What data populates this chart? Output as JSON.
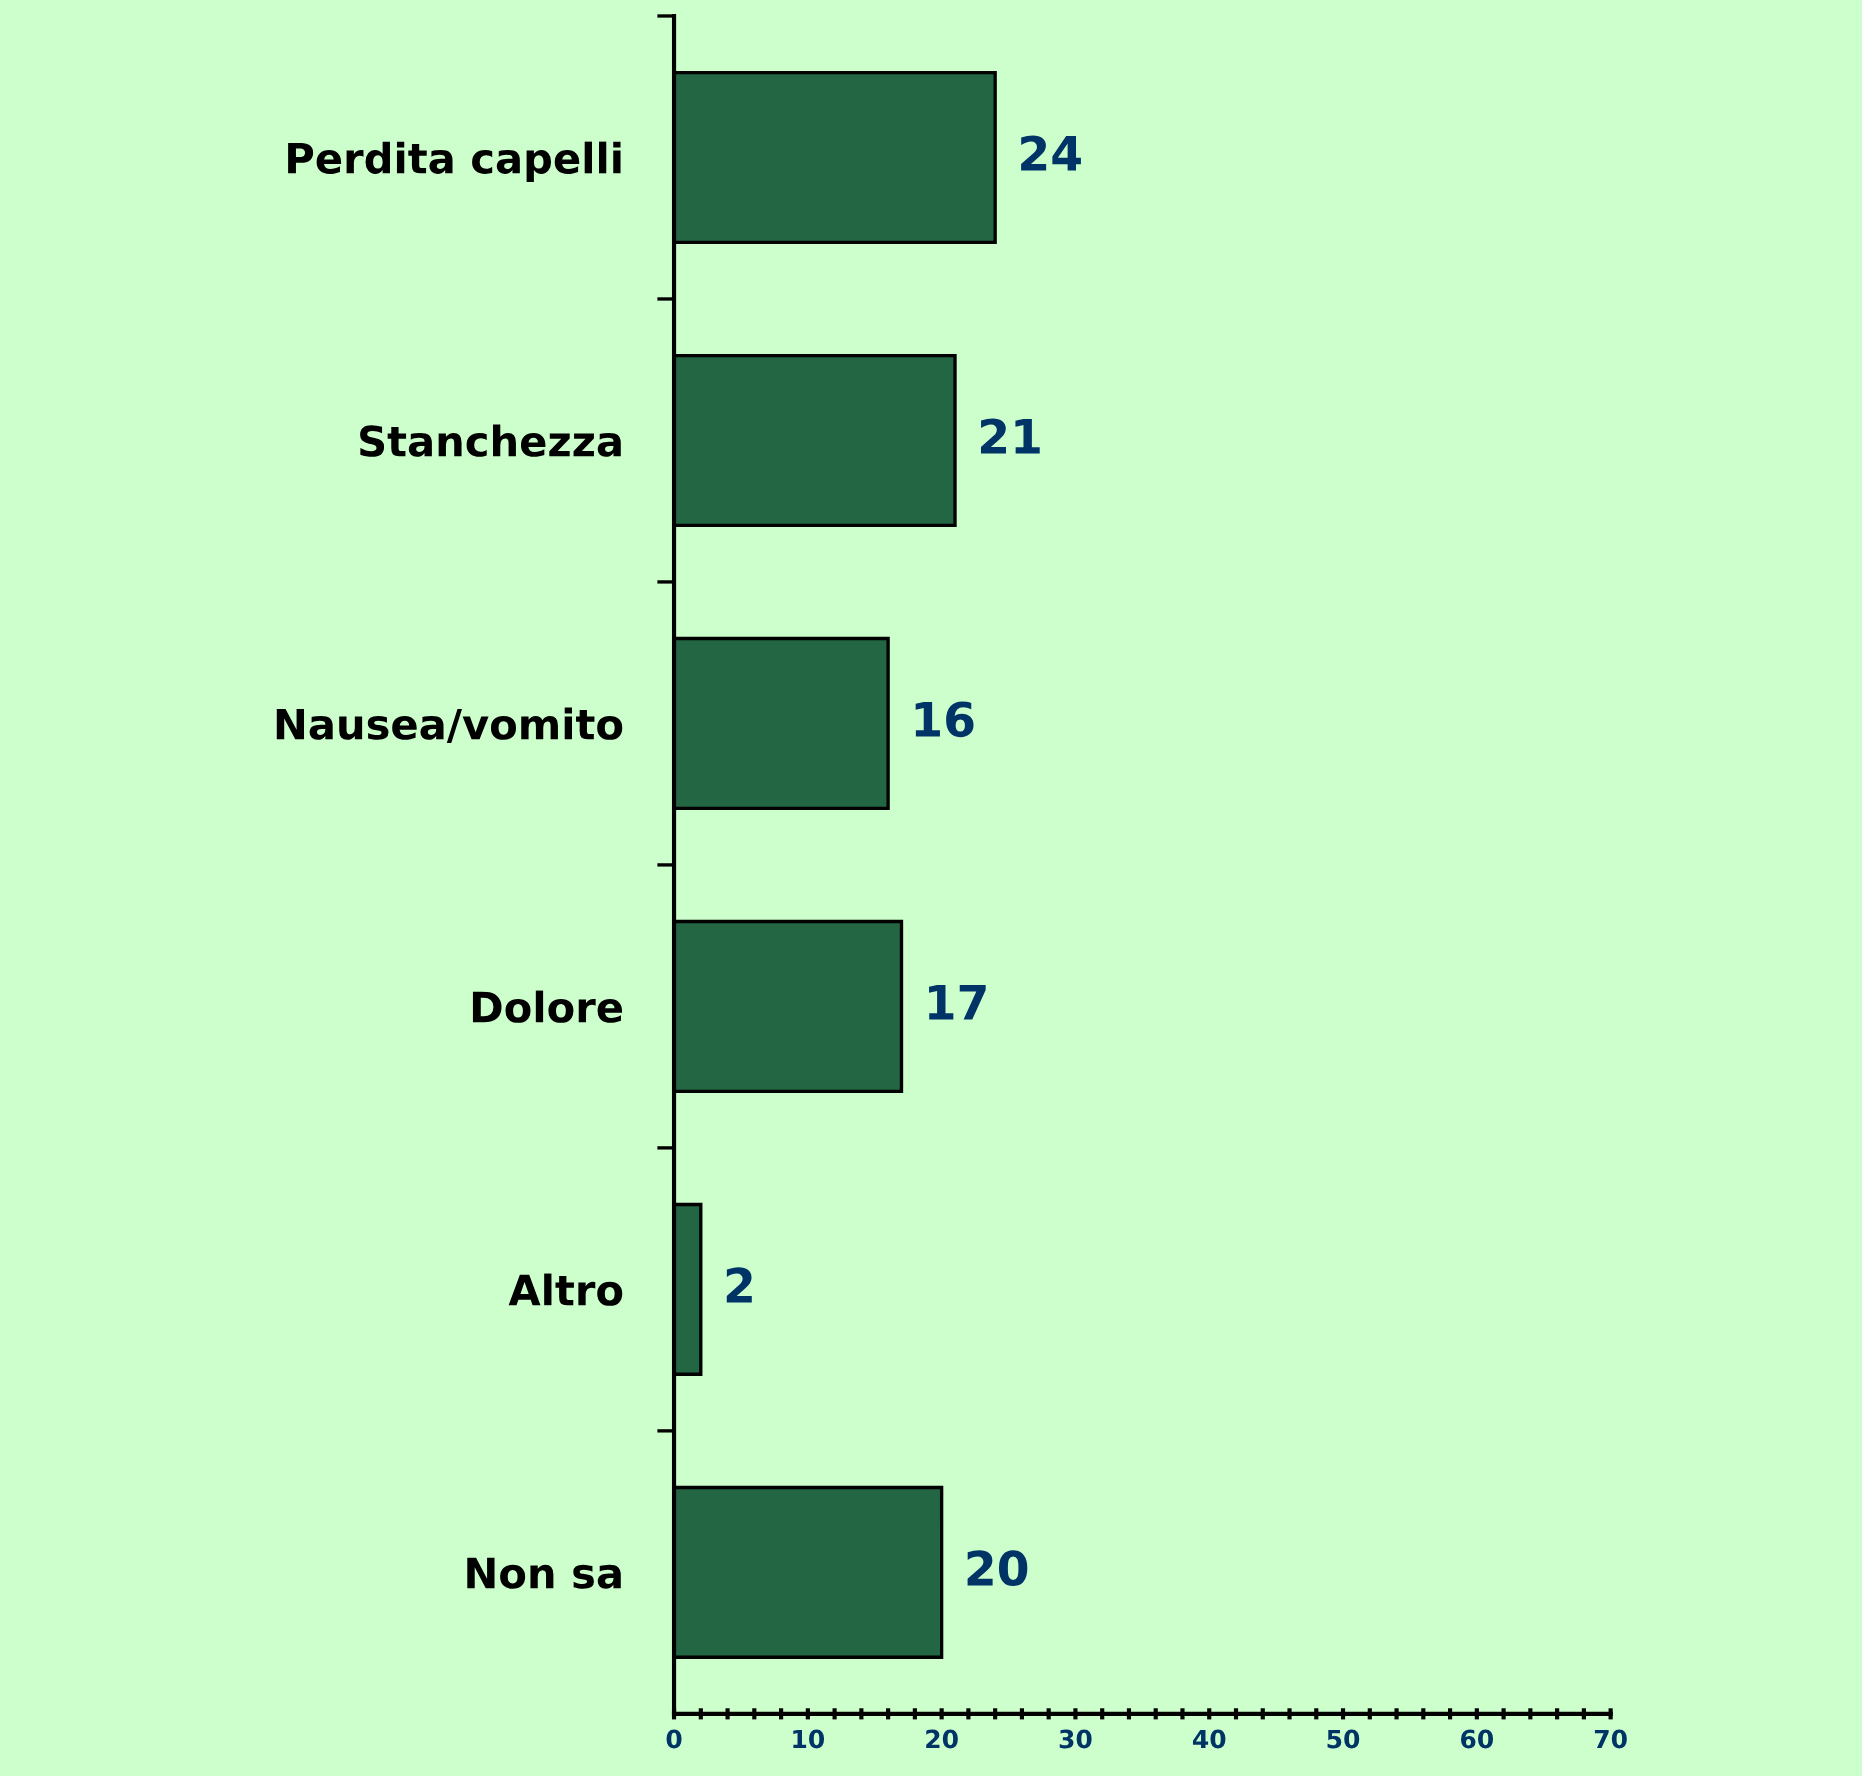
{
  "chart_data": {
    "type": "bar",
    "orientation": "horizontal",
    "categories": [
      "Perdita capelli",
      "Stanchezza",
      "Nausea/vomito",
      "Dolore",
      "Altro",
      "Non sa"
    ],
    "values": [
      24,
      21,
      16,
      17,
      2,
      20
    ],
    "color": "#226644",
    "xlim": [
      0,
      70
    ],
    "xticks": [
      0,
      10,
      20,
      30,
      40,
      50,
      60,
      70
    ],
    "data_labels": true,
    "grid": false,
    "legend": false
  }
}
